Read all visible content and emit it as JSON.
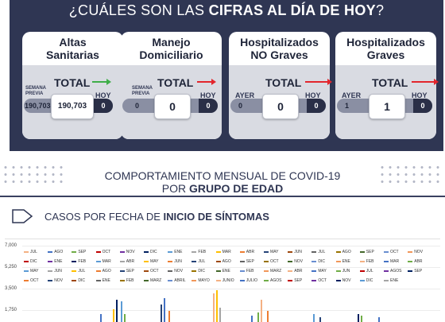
{
  "header": {
    "title_prefix": "¿CUÁLES SON LAS ",
    "title_bold": "CIFRAS AL DÍA DE HOY",
    "title_suffix": "?"
  },
  "cards": [
    {
      "title": "Altas\nSanitarias",
      "total_label": "TOTAL",
      "prev_label": "SEMANA\nPREVIA",
      "prev_value": "190,703",
      "value": "190,703",
      "hoy_label": "HOY",
      "hoy_value": "0",
      "arrow_color": "#3fae49"
    },
    {
      "title": "Manejo\nDomiciliario",
      "total_label": "TOTAL",
      "prev_label": "SEMANA\nPREVIA",
      "prev_value": "0",
      "value": "0",
      "hoy_label": "HOY",
      "hoy_value": "0",
      "arrow_color": "#e3262d"
    },
    {
      "title": "Hospitalizados\nNO Graves",
      "total_label": "TOTAL",
      "prev_label": "AYER",
      "prev_value": "0",
      "value": "0",
      "hoy_label": "HOY",
      "hoy_value": "0",
      "arrow_color": "#e3262d"
    },
    {
      "title": "Hospitalizados\nGraves",
      "total_label": "TOTAL",
      "prev_label": "AYER",
      "prev_value": "1",
      "value": "1",
      "hoy_label": "HOY",
      "hoy_value": "0",
      "arrow_color": "#e3262d"
    }
  ],
  "section": {
    "line1": "COMPORTAMIENTO MENSUAL DE COVID-19",
    "line2_prefix": "POR ",
    "line2_bold": "GRUPO DE EDAD"
  },
  "cases": {
    "prefix": "CASOS POR FECHA DE ",
    "bold": "INICIO DE SÍNTOMAS"
  },
  "chart_data": {
    "type": "bar",
    "y_ticks": [
      "7,000",
      "5,250",
      "3,500",
      "1,750"
    ],
    "legend": [
      [
        "JUL",
        "AGO",
        "SEP",
        "OCT",
        "NOV",
        "DIC",
        "ENE",
        "FEB",
        "MAR",
        "ABR",
        "MAY",
        "JUN",
        "JUL",
        "AGO",
        "SEP",
        "OCT",
        "NOV"
      ],
      [
        "DIC",
        "ENE",
        "FEB",
        "MAR",
        "ABR",
        "MAY",
        "JUN",
        "JUL",
        "AGO",
        "SEP",
        "OCT",
        "NOV",
        "DIC",
        "ENE",
        "FEB",
        "MAR",
        "ABR"
      ],
      [
        "MAY",
        "JUN",
        "JUL",
        "AGO",
        "SEP",
        "OCT",
        "NOV",
        "DIC",
        "ENE",
        "FEB",
        "MARZ",
        "ABR",
        "MAY",
        "JUN",
        "JUL",
        "AGOS",
        "SEP"
      ],
      [
        "OCT",
        "NOV",
        "DIC",
        "ENE",
        "FEB",
        "MARZ",
        "ABRIL",
        "MAYO",
        "JUNIO",
        "JULIO",
        "AGOS",
        "SEP",
        "OCT",
        "NOV",
        "DIC",
        "ENE"
      ]
    ],
    "legend_colors": [
      "#f4b183",
      "#4472c4",
      "#70ad47",
      "#c00000",
      "#7030a0",
      "#002060",
      "#5b9bd5",
      "#a5a5a5",
      "#ffc000",
      "#ed7d31",
      "#264478",
      "#9e480e",
      "#636363",
      "#997300",
      "#43682b",
      "#698ed0",
      "#f1975a"
    ]
  }
}
